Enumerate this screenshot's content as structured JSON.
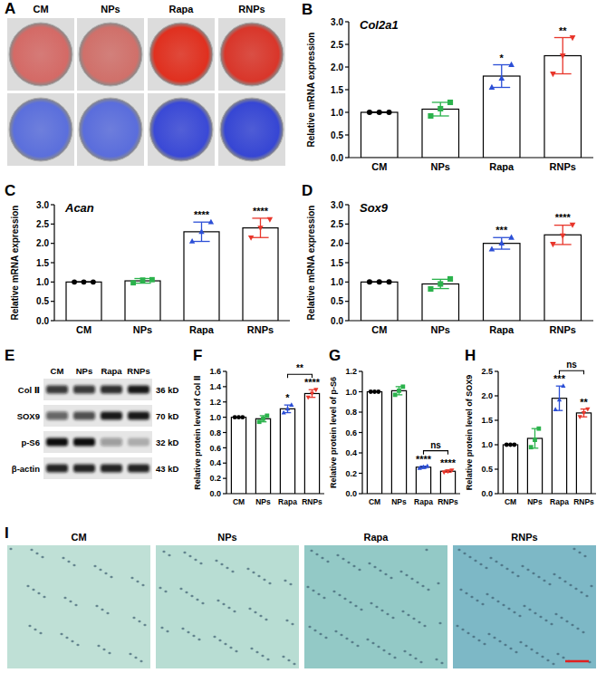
{
  "chart_data": [
    {
      "type": "bar",
      "panel": "B",
      "title": "Col2a1",
      "y_label": "Relative mRNA expression",
      "categories": [
        "CM",
        "NPs",
        "Rapa",
        "RNPs"
      ],
      "values": [
        1.0,
        1.07,
        1.8,
        2.25
      ],
      "errors": [
        0,
        0.15,
        0.25,
        0.4
      ],
      "points": [
        [
          1.0,
          1.0,
          1.0
        ],
        [
          0.92,
          1.08,
          1.22
        ],
        [
          1.55,
          1.75,
          2.05
        ],
        [
          1.85,
          2.25,
          2.65
        ]
      ],
      "colors": [
        "#000000",
        "#2bb24c",
        "#2c4fd6",
        "#e8362b"
      ],
      "ylim": [
        0,
        3.0
      ],
      "yticks": [
        {
          "value": 0,
          "label": "0.0"
        },
        0.5,
        {
          "value": 1,
          "label": "1.0"
        },
        1.5,
        {
          "value": 2,
          "label": "2.0"
        },
        2.5,
        {
          "value": 3,
          "label": "3.0"
        }
      ],
      "annotations": [
        {
          "x": "Rapa",
          "text": "*"
        },
        {
          "x": "RNPs",
          "text": "**"
        }
      ]
    },
    {
      "type": "bar",
      "panel": "C",
      "title": "Acan",
      "y_label": "Relative mRNA expression",
      "categories": [
        "CM",
        "NPs",
        "Rapa",
        "RNPs"
      ],
      "values": [
        1.0,
        1.03,
        2.3,
        2.4
      ],
      "errors": [
        0,
        0.06,
        0.25,
        0.25
      ],
      "points": [
        [
          1.0,
          1.0,
          1.0
        ],
        [
          0.98,
          1.05,
          1.06
        ],
        [
          2.05,
          2.3,
          2.55
        ],
        [
          2.15,
          2.4,
          2.62
        ]
      ],
      "colors": [
        "#000000",
        "#2bb24c",
        "#2c4fd6",
        "#e8362b"
      ],
      "ylim": [
        0,
        3.0
      ],
      "yticks": [
        {
          "value": 0,
          "label": "0.0"
        },
        0.5,
        {
          "value": 1,
          "label": "1.0"
        },
        1.5,
        {
          "value": 2,
          "label": "2.0"
        },
        2.5,
        {
          "value": 3,
          "label": "3.0"
        }
      ],
      "annotations": [
        {
          "x": "Rapa",
          "text": "****"
        },
        {
          "x": "RNPs",
          "text": "****"
        }
      ]
    },
    {
      "type": "bar",
      "panel": "D",
      "title": "Sox9",
      "y_label": "Relative mRNA expression",
      "categories": [
        "CM",
        "NPs",
        "Rapa",
        "RNPs"
      ],
      "values": [
        1.0,
        0.95,
        2.0,
        2.22
      ],
      "errors": [
        0,
        0.12,
        0.15,
        0.25
      ],
      "points": [
        [
          1.0,
          1.0,
          1.0
        ],
        [
          0.82,
          0.95,
          1.08
        ],
        [
          1.85,
          2.0,
          2.15
        ],
        [
          1.98,
          2.2,
          2.48
        ]
      ],
      "colors": [
        "#000000",
        "#2bb24c",
        "#2c4fd6",
        "#e8362b"
      ],
      "ylim": [
        0,
        3.0
      ],
      "yticks": [
        {
          "value": 0,
          "label": "0.0"
        },
        0.5,
        {
          "value": 1,
          "label": "1.0"
        },
        1.5,
        {
          "value": 2,
          "label": "2.0"
        },
        2.5,
        {
          "value": 3,
          "label": "3.0"
        }
      ],
      "annotations": [
        {
          "x": "Rapa",
          "text": "***"
        },
        {
          "x": "RNPs",
          "text": "****"
        }
      ]
    },
    {
      "type": "bar",
      "panel": "F",
      "y_label": "Relative protein level of Col Ⅱ",
      "categories": [
        "CM",
        "NPs",
        "Rapa",
        "RNPs"
      ],
      "values": [
        1.0,
        0.98,
        1.11,
        1.31
      ],
      "errors": [
        0,
        0.04,
        0.05,
        0.05
      ],
      "points": [
        [
          1.0,
          1.0,
          1.0
        ],
        [
          0.94,
          0.98,
          1.02
        ],
        [
          1.06,
          1.11,
          1.16
        ],
        [
          1.26,
          1.31,
          1.36
        ]
      ],
      "colors": [
        "#000000",
        "#2bb24c",
        "#2c4fd6",
        "#e8362b"
      ],
      "ylim": [
        0,
        1.6
      ],
      "yticks": [
        {
          "value": 0,
          "label": "0.0"
        },
        0.2,
        0.4,
        0.6,
        0.8,
        {
          "value": 1,
          "label": "1.0"
        },
        1.2,
        1.4,
        1.6
      ],
      "annotations": [
        {
          "x": "Rapa",
          "text": "*"
        },
        {
          "x": "RNPs",
          "text": "****"
        }
      ],
      "brackets": [
        {
          "from": "Rapa",
          "to": "RNPs",
          "text": "**"
        }
      ]
    },
    {
      "type": "bar",
      "panel": "G",
      "y_label": "Relative protein level of p-S6",
      "categories": [
        "CM",
        "NPs",
        "Rapa",
        "RNPs"
      ],
      "values": [
        1.0,
        1.01,
        0.26,
        0.22
      ],
      "errors": [
        0,
        0.04,
        0.01,
        0.01
      ],
      "points": [
        [
          1.0,
          1.0,
          1.0
        ],
        [
          0.97,
          1.01,
          1.05
        ],
        [
          0.25,
          0.26,
          0.27
        ],
        [
          0.21,
          0.22,
          0.23
        ]
      ],
      "colors": [
        "#000000",
        "#2bb24c",
        "#2c4fd6",
        "#e8362b"
      ],
      "ylim": [
        0,
        1.2
      ],
      "yticks": [
        {
          "value": 0,
          "label": "0.0"
        },
        0.2,
        0.4,
        0.6,
        0.8,
        {
          "value": 1,
          "label": "1.0"
        },
        1.2
      ],
      "annotations": [
        {
          "x": "Rapa",
          "text": "****"
        },
        {
          "x": "RNPs",
          "text": "****"
        }
      ],
      "brackets": [
        {
          "from": "Rapa",
          "to": "RNPs",
          "text": "ns"
        }
      ]
    },
    {
      "type": "bar",
      "panel": "H",
      "y_label": "Relative protein level of SOX9",
      "categories": [
        "CM",
        "NPs",
        "Rapa",
        "RNPs"
      ],
      "values": [
        1.0,
        1.13,
        1.95,
        1.65
      ],
      "errors": [
        0,
        0.2,
        0.25,
        0.08
      ],
      "points": [
        [
          1.0,
          1.0,
          1.0
        ],
        [
          0.95,
          1.1,
          1.33
        ],
        [
          1.72,
          1.92,
          2.2
        ],
        [
          1.57,
          1.65,
          1.73
        ]
      ],
      "colors": [
        "#000000",
        "#2bb24c",
        "#2c4fd6",
        "#e8362b"
      ],
      "ylim": [
        0,
        2.5
      ],
      "yticks": [
        {
          "value": 0,
          "label": "0.0"
        },
        0.5,
        {
          "value": 1,
          "label": "1.0"
        },
        1.5,
        {
          "value": 2,
          "label": "2.0"
        },
        2.5
      ],
      "annotations": [
        {
          "x": "Rapa",
          "text": "***"
        },
        {
          "x": "RNPs",
          "text": "**"
        }
      ],
      "brackets": [
        {
          "from": "Rapa",
          "to": "RNPs",
          "text": "ns"
        }
      ]
    }
  ],
  "panel_a": {
    "label": "A",
    "groups": [
      "CM",
      "NPs",
      "Rapa",
      "RNPs"
    ],
    "top_colors": [
      "#d46a66",
      "#d0706a",
      "#e0301f",
      "#d9362a"
    ],
    "bottom_colors": [
      "#5b6fdc",
      "#5a6ddc",
      "#3a49d6",
      "#3646d4"
    ]
  },
  "panel_e": {
    "label": "E",
    "lanes": [
      "CM",
      "NPs",
      "Rapa",
      "RNPs"
    ],
    "rows": [
      {
        "name": "Col Ⅱ",
        "size": "36 kD",
        "intensity": [
          0.8,
          0.8,
          0.85,
          0.95
        ]
      },
      {
        "name": "SOX9",
        "size": "70 kD",
        "intensity": [
          0.6,
          0.7,
          0.95,
          0.95
        ]
      },
      {
        "name": "p-S6",
        "size": "32 kD",
        "intensity": [
          1.0,
          1.0,
          0.35,
          0.25
        ]
      },
      {
        "name": "β-actin",
        "size": "43 kD",
        "intensity": [
          0.9,
          0.9,
          0.9,
          0.9
        ]
      }
    ]
  },
  "panel_i": {
    "label": "I",
    "groups": [
      "CM",
      "NPs",
      "Rapa",
      "RNPs"
    ],
    "colors": [
      "#bfe0d6",
      "#b8ddd3",
      "#93c9c6",
      "#7db8c6"
    ]
  }
}
